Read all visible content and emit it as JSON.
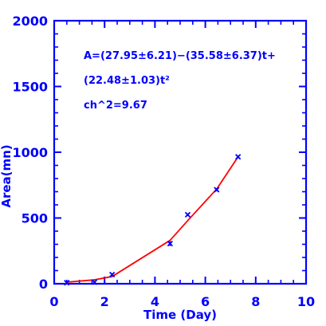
{
  "chart_data": {
    "type": "scatter",
    "title": "",
    "xlabel": "Time (Day)",
    "ylabel": "Area(mn)",
    "xlim": [
      0,
      10
    ],
    "ylim": [
      0,
      2000
    ],
    "x_ticks": [
      0,
      2,
      4,
      6,
      8,
      10
    ],
    "y_ticks": [
      0,
      500,
      1000,
      1500,
      2000
    ],
    "x_tick_labels": [
      "0",
      "2",
      "4",
      "6",
      "8",
      "10"
    ],
    "y_tick_labels": [
      "0",
      "500",
      "1000",
      "1500",
      "2000"
    ],
    "grid": false,
    "series": [
      {
        "kind": "points",
        "marker": "x",
        "color": "#0000ff",
        "x": [
          0.5,
          1.6,
          2.3,
          4.6,
          5.3,
          6.45,
          7.3
        ],
        "y": [
          8,
          12,
          70,
          305,
          525,
          715,
          965
        ],
        "y_err": [
          8,
          8,
          10,
          18,
          10,
          12,
          10
        ]
      },
      {
        "kind": "fit-line",
        "color": "#ff0000",
        "x": [
          0.5,
          1.6,
          2.3,
          4.6,
          5.3,
          6.45,
          7.3
        ],
        "y": [
          12,
          30,
          55,
          330,
          480,
          720,
          965
        ]
      }
    ],
    "annotations": [
      "A=(27.95±6.21)−(35.58±6.37)t+",
      "(22.48±1.03)t²",
      "ch^2=9.67"
    ],
    "colors": {
      "axis": "#0000ff",
      "text": "#0000ff",
      "fit": "#ff0000"
    }
  }
}
